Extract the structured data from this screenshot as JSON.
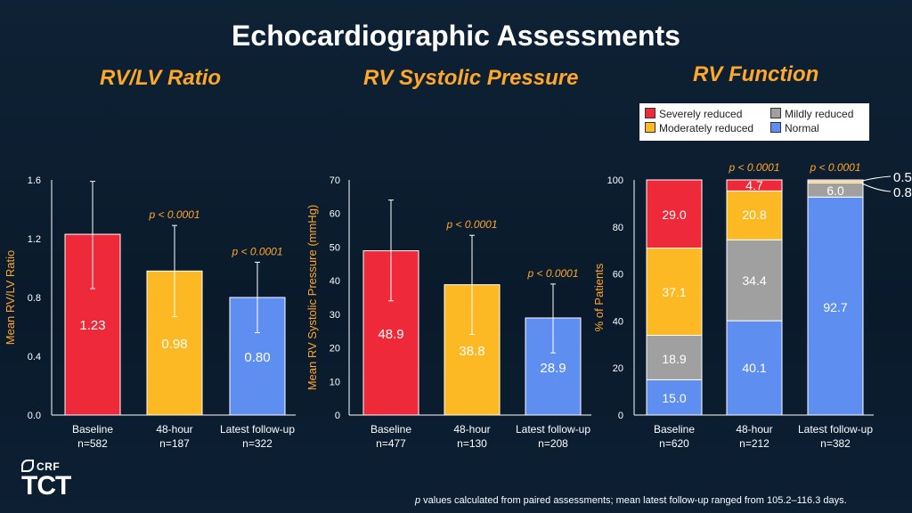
{
  "title": "Echocardiographic Assessments",
  "panel_titles": {
    "rvlv": "RV/LV Ratio",
    "rvsp": "RV Systolic Pressure",
    "rvf": "RV Function"
  },
  "legend": {
    "items": [
      {
        "label": "Severely reduced",
        "color": "#ee2939"
      },
      {
        "label": "Mildly reduced",
        "color": "#a0a0a0"
      },
      {
        "label": "Moderately reduced",
        "color": "#fdb924"
      },
      {
        "label": "Normal",
        "color": "#5e8ef0"
      }
    ]
  },
  "footnote": {
    "p": "p",
    "text": " values calculated from paired assessments; mean latest follow-up ranged from 105.2–116.3 days."
  },
  "logo": {
    "crf": "CRF",
    "tct": "TCT"
  },
  "chart_data": [
    {
      "type": "bar",
      "ylabel": "Mean RV/LV Ratio",
      "ylim": [
        0,
        1.6
      ],
      "yticks": [
        "0.0",
        "0.4",
        "0.8",
        "1.2",
        "1.6"
      ],
      "tick_values": [
        0,
        0.4,
        0.8,
        1.2,
        1.6
      ],
      "categories": [
        "Baseline",
        "48-hour",
        "Latest follow-up"
      ],
      "n_labels": [
        "n=582",
        "n=187",
        "n=322"
      ],
      "values": [
        1.23,
        0.98,
        0.8
      ],
      "value_labels": [
        "1.23",
        "0.98",
        "0.80"
      ],
      "error_low": [
        0.86,
        0.67,
        0.56
      ],
      "error_high": [
        1.59,
        1.29,
        1.04
      ],
      "colors": [
        "#ee2939",
        "#fdb924",
        "#5e8ef0"
      ],
      "pvalues": [
        "",
        "p < 0.0001",
        "p < 0.0001"
      ]
    },
    {
      "type": "bar",
      "ylabel": "Mean RV Systolic Pressure (mmHg)",
      "ylim": [
        0,
        70
      ],
      "yticks": [
        "0",
        "10",
        "20",
        "30",
        "40",
        "50",
        "60",
        "70"
      ],
      "tick_values": [
        0,
        10,
        20,
        30,
        40,
        50,
        60,
        70
      ],
      "categories": [
        "Baseline",
        "48-hour",
        "Latest follow-up"
      ],
      "n_labels": [
        "n=477",
        "n=130",
        "n=208"
      ],
      "values": [
        48.9,
        38.8,
        28.9
      ],
      "value_labels": [
        "48.9",
        "38.8",
        "28.9"
      ],
      "error_low": [
        34.0,
        24.0,
        18.5
      ],
      "error_high": [
        64.0,
        53.5,
        39.0
      ],
      "colors": [
        "#ee2939",
        "#fdb924",
        "#5e8ef0"
      ],
      "pvalues": [
        "",
        "p < 0.0001",
        "p < 0.0001"
      ]
    },
    {
      "type": "stacked_bar",
      "ylabel": "% of Patients",
      "ylim": [
        0,
        100
      ],
      "yticks": [
        "0",
        "20",
        "40",
        "60",
        "80",
        "100"
      ],
      "tick_values": [
        0,
        20,
        40,
        60,
        80,
        100
      ],
      "categories": [
        "Baseline",
        "48-hour",
        "Latest follow-up"
      ],
      "n_labels": [
        "n=620",
        "n=212",
        "n=382"
      ],
      "series": [
        {
          "name": "Normal",
          "color": "#5e8ef0",
          "values": [
            15.0,
            40.1,
            92.7
          ],
          "labels": [
            "15.0",
            "40.1",
            "92.7"
          ]
        },
        {
          "name": "Mildly reduced",
          "color": "#a0a0a0",
          "values": [
            18.9,
            34.4,
            6.0
          ],
          "labels": [
            "18.9",
            "34.4",
            "6.0"
          ]
        },
        {
          "name": "Moderately reduced",
          "color": "#fdb924",
          "values": [
            37.1,
            20.8,
            0.8
          ],
          "labels": [
            "37.1",
            "20.8",
            "0.8"
          ]
        },
        {
          "name": "Severely reduced",
          "color": "#ee2939",
          "values": [
            29.0,
            4.7,
            0.5
          ],
          "labels": [
            "29.0",
            "4.7",
            "0.5"
          ]
        }
      ],
      "pvalues": [
        "",
        "p < 0.0001",
        "p < 0.0001"
      ]
    }
  ]
}
